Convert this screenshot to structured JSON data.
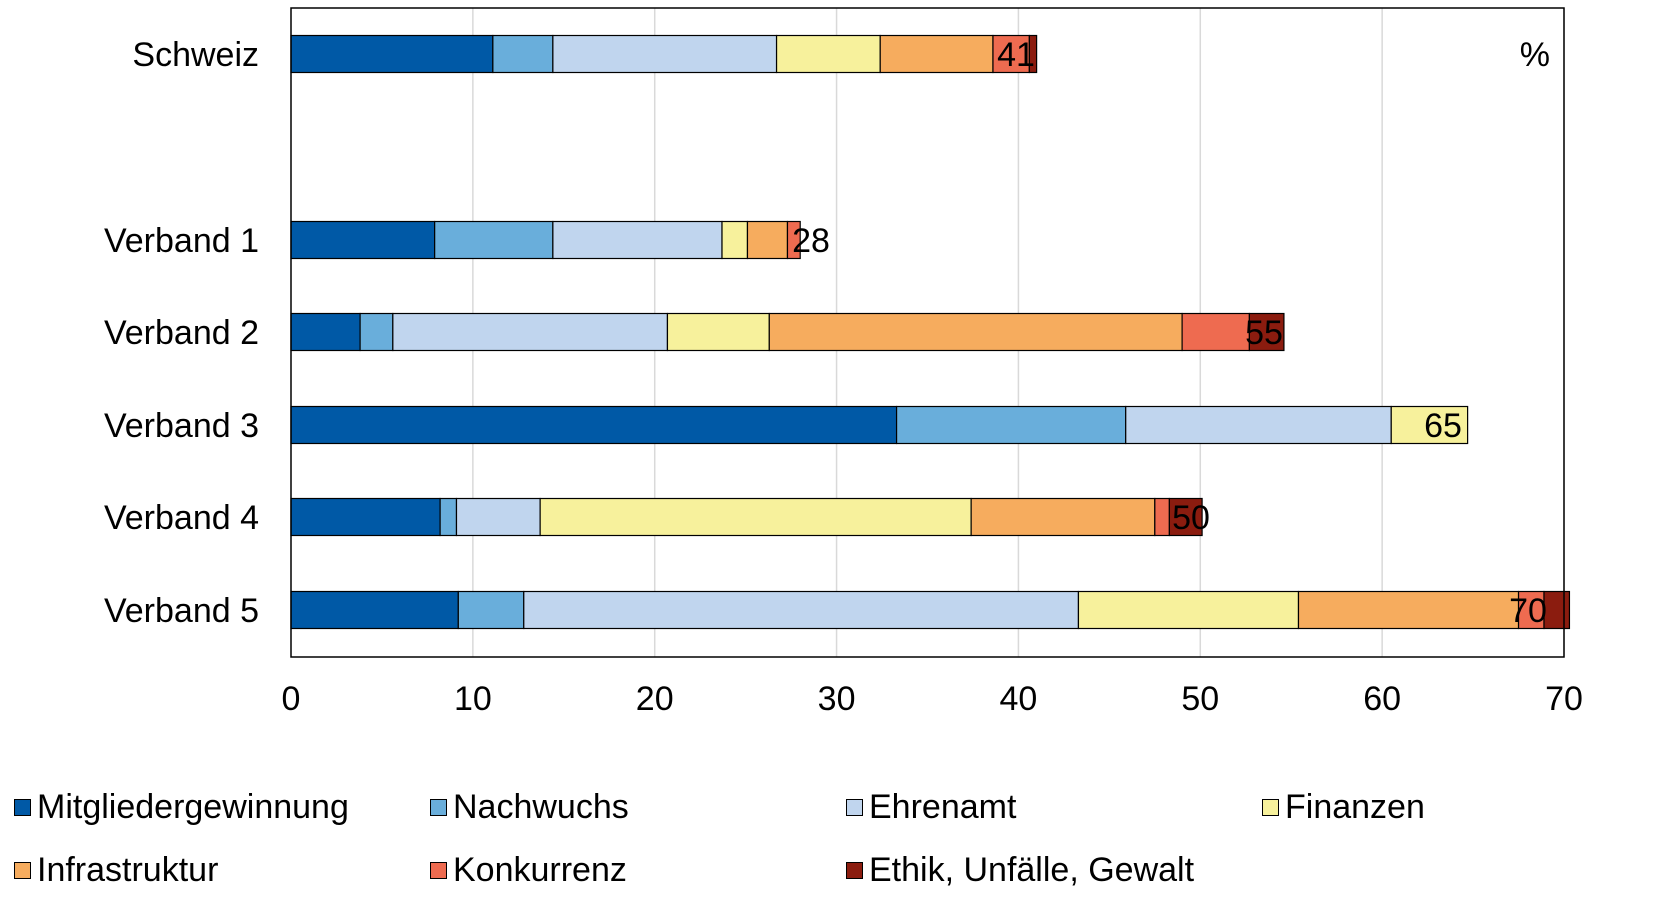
{
  "chart_data": {
    "type": "bar",
    "orientation": "horizontal",
    "stacked": true,
    "unit_label": "%",
    "categories": [
      "Schweiz",
      "Verband 1",
      "Verband 2",
      "Verband 3",
      "Verband 4",
      "Verband 5"
    ],
    "totals": [
      "41",
      "28",
      "55",
      "65",
      "50",
      "70"
    ],
    "xlim": [
      0,
      70
    ],
    "xticks": [
      0,
      10,
      20,
      30,
      40,
      50,
      60,
      70
    ],
    "grid": "vertical",
    "legend_position": "bottom",
    "series": [
      {
        "name": "Mitgliedergewinnung",
        "color": "#0059a6",
        "values": [
          11.1,
          7.9,
          3.8,
          33.3,
          8.2,
          9.2
        ]
      },
      {
        "name": "Nachwuchs",
        "color": "#69aedb",
        "values": [
          3.3,
          6.5,
          1.8,
          12.6,
          0.9,
          3.6
        ]
      },
      {
        "name": "Ehrenamt",
        "color": "#c0d5ee",
        "values": [
          12.3,
          9.3,
          15.1,
          14.6,
          4.6,
          30.5
        ]
      },
      {
        "name": "Finanzen",
        "color": "#f7f19c",
        "values": [
          5.7,
          1.4,
          5.6,
          4.2,
          23.7,
          12.1
        ]
      },
      {
        "name": "Infrastruktur",
        "color": "#f6ac5e",
        "values": [
          6.2,
          2.2,
          22.7,
          0,
          10.1,
          12.1
        ]
      },
      {
        "name": "Konkurrenz",
        "color": "#ee6b50",
        "values": [
          2.0,
          0.7,
          3.7,
          0,
          0.8,
          1.4
        ]
      },
      {
        "name": "Ethik, Unfälle, Gewalt",
        "color": "#8b1c0f",
        "values": [
          0.4,
          0,
          1.9,
          0,
          1.8,
          1.4
        ]
      }
    ]
  }
}
